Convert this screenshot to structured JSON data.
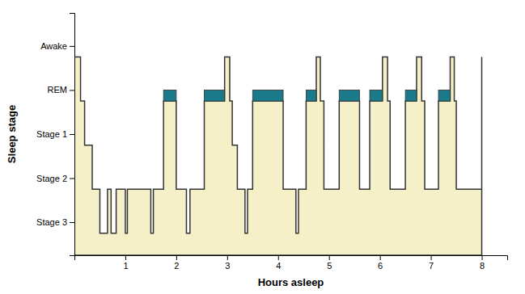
{
  "chart_data": {
    "type": "area",
    "xlabel": "Hours asleep",
    "ylabel": "Sleep stage",
    "x": [
      0.0,
      0.12,
      0.12,
      0.2,
      0.2,
      0.35,
      0.35,
      0.5,
      0.5,
      0.65,
      0.65,
      0.72,
      0.72,
      0.82,
      0.82,
      1.0,
      1.0,
      1.04,
      1.04,
      1.35,
      1.35,
      1.5,
      1.5,
      1.55,
      1.55,
      1.75,
      1.75,
      2.0,
      2.0,
      2.05,
      2.05,
      2.2,
      2.2,
      2.27,
      2.27,
      2.55,
      2.55,
      2.95,
      2.95,
      3.05,
      3.05,
      3.1,
      3.1,
      3.2,
      3.2,
      3.35,
      3.35,
      3.4,
      3.4,
      3.5,
      3.5,
      4.1,
      4.1,
      4.15,
      4.15,
      4.35,
      4.35,
      4.4,
      4.4,
      4.55,
      4.55,
      4.75,
      4.75,
      4.83,
      4.83,
      4.9,
      4.9,
      5.05,
      5.05,
      5.2,
      5.2,
      5.6,
      5.6,
      5.65,
      5.65,
      5.8,
      5.8,
      6.05,
      6.05,
      6.15,
      6.15,
      6.2,
      6.2,
      6.35,
      6.35,
      6.5,
      6.5,
      6.72,
      6.72,
      6.82,
      6.82,
      6.88,
      6.88,
      7.05,
      7.05,
      7.15,
      7.15,
      7.38,
      7.38,
      7.46,
      7.46,
      7.5,
      7.5,
      8.0,
      8.0
    ],
    "values": [
      9,
      9,
      7,
      7,
      5,
      5,
      3,
      3,
      1,
      1,
      3,
      3,
      1,
      1,
      3,
      3,
      1,
      1,
      3,
      3,
      3,
      3,
      1,
      1,
      3,
      3,
      7,
      7,
      3,
      3,
      3,
      3,
      1,
      1,
      3,
      3,
      7,
      7,
      9,
      9,
      7,
      7,
      5,
      5,
      3,
      3,
      1,
      1,
      3,
      3,
      7,
      7,
      3,
      3,
      3,
      3,
      1,
      1,
      3,
      3,
      7,
      7,
      9,
      9,
      7,
      7,
      3,
      3,
      3,
      3,
      7,
      7,
      3,
      3,
      3,
      3,
      7,
      7,
      9,
      9,
      7,
      7,
      3,
      3,
      3,
      3,
      7,
      7,
      9,
      9,
      7,
      7,
      3,
      3,
      3,
      3,
      7,
      7,
      9,
      9,
      7,
      7,
      3,
      3,
      9
    ],
    "color": "#f5f0c8",
    "bands": {
      "y": 7,
      "height": 0.5,
      "color": "#1a7a8a",
      "x": [
        [
          1.75,
          2.0
        ],
        [
          2.55,
          2.95
        ],
        [
          3.5,
          4.1
        ],
        [
          4.55,
          4.75
        ],
        [
          5.2,
          5.6
        ],
        [
          5.8,
          6.05
        ],
        [
          6.5,
          6.72
        ],
        [
          7.15,
          7.38
        ]
      ]
    },
    "xlim": [
      0,
      8.5
    ],
    "ylim": [
      0,
      11
    ],
    "xticks": [
      1,
      2,
      3,
      4,
      5,
      6,
      7,
      8
    ],
    "yticks": [
      {
        "value": 1.5,
        "label": "Stage 3"
      },
      {
        "value": 3.5,
        "label": "Stage 2"
      },
      {
        "value": 5.5,
        "label": "Stage 1"
      },
      {
        "value": 7.5,
        "label": "REM"
      },
      {
        "value": 9.5,
        "label": "Awake"
      }
    ],
    "grid": false
  }
}
